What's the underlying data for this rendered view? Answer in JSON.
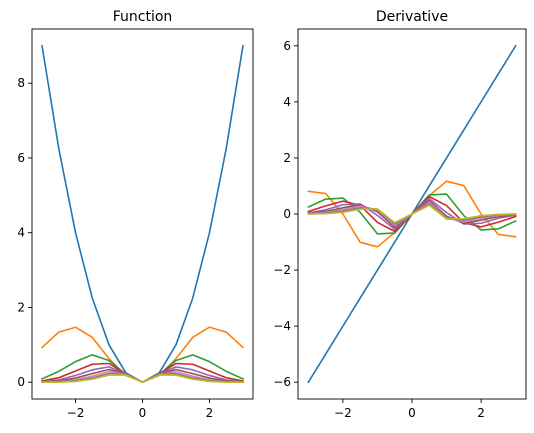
{
  "chart_data": [
    {
      "type": "line",
      "title": "Function",
      "xlabel": "",
      "ylabel": "",
      "xlim": [
        -3.3,
        3.3
      ],
      "ylim": [
        -0.45,
        9.45
      ],
      "xticks": [
        -2,
        0,
        2
      ],
      "yticks": [
        0,
        2,
        4,
        6,
        8
      ],
      "xtick_labels": [
        "−2",
        "0",
        "2"
      ],
      "ytick_labels": [
        "0",
        "2",
        "4",
        "6",
        "8"
      ],
      "grid": false,
      "x": [
        -3.0,
        -2.5,
        -2.0,
        -1.5,
        -1.0,
        -0.5,
        0.0,
        0.5,
        1.0,
        1.5,
        2.0,
        2.5,
        3.0
      ],
      "series": [
        {
          "color": "#1f77b4",
          "values": [
            9.0,
            6.25,
            4.0,
            2.25,
            1.0,
            0.25,
            0.0,
            0.25,
            1.0,
            2.25,
            4.0,
            6.25,
            9.0
          ]
        },
        {
          "color": "#ff7f0e",
          "values": [
            0.93,
            1.34,
            1.47,
            1.2,
            0.63,
            0.18,
            0.0,
            0.18,
            0.63,
            1.2,
            1.47,
            1.34,
            0.93
          ]
        },
        {
          "color": "#2ca02c",
          "values": [
            0.09,
            0.29,
            0.55,
            0.73,
            0.58,
            0.21,
            0.0,
            0.21,
            0.58,
            0.73,
            0.55,
            0.29,
            0.09
          ]
        },
        {
          "color": "#d62728",
          "values": [
            0.03,
            0.12,
            0.3,
            0.48,
            0.5,
            0.22,
            0.0,
            0.22,
            0.5,
            0.48,
            0.3,
            0.12,
            0.03
          ]
        },
        {
          "color": "#9467bd",
          "values": [
            0.01,
            0.06,
            0.18,
            0.33,
            0.41,
            0.22,
            0.0,
            0.22,
            0.41,
            0.33,
            0.18,
            0.06,
            0.01
          ]
        },
        {
          "color": "#8c564b",
          "values": [
            0.0,
            0.03,
            0.11,
            0.23,
            0.34,
            0.22,
            0.0,
            0.22,
            0.34,
            0.23,
            0.11,
            0.03,
            0.0
          ]
        },
        {
          "color": "#e377c2",
          "values": [
            0.0,
            0.01,
            0.06,
            0.16,
            0.28,
            0.21,
            0.0,
            0.21,
            0.28,
            0.16,
            0.06,
            0.01,
            0.0
          ]
        },
        {
          "color": "#7f7f7f",
          "values": [
            0.0,
            0.01,
            0.04,
            0.11,
            0.23,
            0.2,
            0.0,
            0.2,
            0.23,
            0.11,
            0.04,
            0.01,
            0.0
          ]
        },
        {
          "color": "#bcbd22",
          "values": [
            0.0,
            0.0,
            0.02,
            0.08,
            0.19,
            0.19,
            0.0,
            0.19,
            0.19,
            0.08,
            0.02,
            0.0,
            0.0
          ]
        }
      ]
    },
    {
      "type": "line",
      "title": "Derivative",
      "xlabel": "",
      "ylabel": "",
      "xlim": [
        -3.3,
        3.3
      ],
      "ylim": [
        -6.6,
        6.6
      ],
      "xticks": [
        -2,
        0,
        2
      ],
      "yticks": [
        -6,
        -4,
        -2,
        0,
        2,
        4,
        6
      ],
      "xtick_labels": [
        "−2",
        "0",
        "2"
      ],
      "ytick_labels": [
        "−6",
        "−4",
        "−2",
        "0",
        "2",
        "4",
        "6"
      ],
      "grid": false,
      "x": [
        -3.0,
        -2.5,
        -2.0,
        -1.5,
        -1.0,
        -0.5,
        0.0,
        0.5,
        1.0,
        1.5,
        2.0,
        2.5,
        3.0
      ],
      "series": [
        {
          "color": "#1f77b4",
          "values": [
            -6.0,
            -5.0,
            -4.0,
            -3.0,
            -2.0,
            -1.0,
            0.0,
            1.0,
            2.0,
            3.0,
            4.0,
            5.0,
            6.0
          ]
        },
        {
          "color": "#ff7f0e",
          "values": [
            0.81,
            0.73,
            0.0,
            -1.01,
            -1.17,
            -0.66,
            0.0,
            0.66,
            1.17,
            1.01,
            0.0,
            -0.73,
            -0.81
          ]
        },
        {
          "color": "#2ca02c",
          "values": [
            0.25,
            0.53,
            0.57,
            0.06,
            -0.71,
            -0.68,
            0.0,
            0.68,
            0.71,
            -0.06,
            -0.57,
            -0.53,
            -0.25
          ]
        },
        {
          "color": "#d62728",
          "values": [
            0.09,
            0.29,
            0.46,
            0.31,
            -0.3,
            -0.62,
            0.0,
            0.62,
            0.3,
            -0.31,
            -0.46,
            -0.29,
            -0.09
          ]
        },
        {
          "color": "#9467bd",
          "values": [
            0.04,
            0.15,
            0.33,
            0.36,
            -0.05,
            -0.55,
            0.0,
            0.55,
            0.05,
            -0.36,
            -0.33,
            -0.15,
            -0.04
          ]
        },
        {
          "color": "#8c564b",
          "values": [
            0.02,
            0.09,
            0.22,
            0.33,
            0.08,
            -0.48,
            0.0,
            0.48,
            -0.08,
            -0.33,
            -0.22,
            -0.09,
            -0.02
          ]
        },
        {
          "color": "#e377c2",
          "values": [
            0.01,
            0.05,
            0.15,
            0.28,
            0.14,
            -0.42,
            0.0,
            0.42,
            -0.14,
            -0.28,
            -0.15,
            -0.05,
            -0.01
          ]
        },
        {
          "color": "#7f7f7f",
          "values": [
            0.0,
            0.03,
            0.1,
            0.22,
            0.17,
            -0.36,
            0.0,
            0.36,
            -0.17,
            -0.22,
            -0.1,
            -0.03,
            0.0
          ]
        },
        {
          "color": "#bcbd22",
          "values": [
            0.0,
            0.01,
            0.06,
            0.17,
            0.18,
            -0.31,
            0.0,
            0.31,
            -0.18,
            -0.17,
            -0.06,
            -0.01,
            0.0
          ]
        }
      ]
    }
  ]
}
